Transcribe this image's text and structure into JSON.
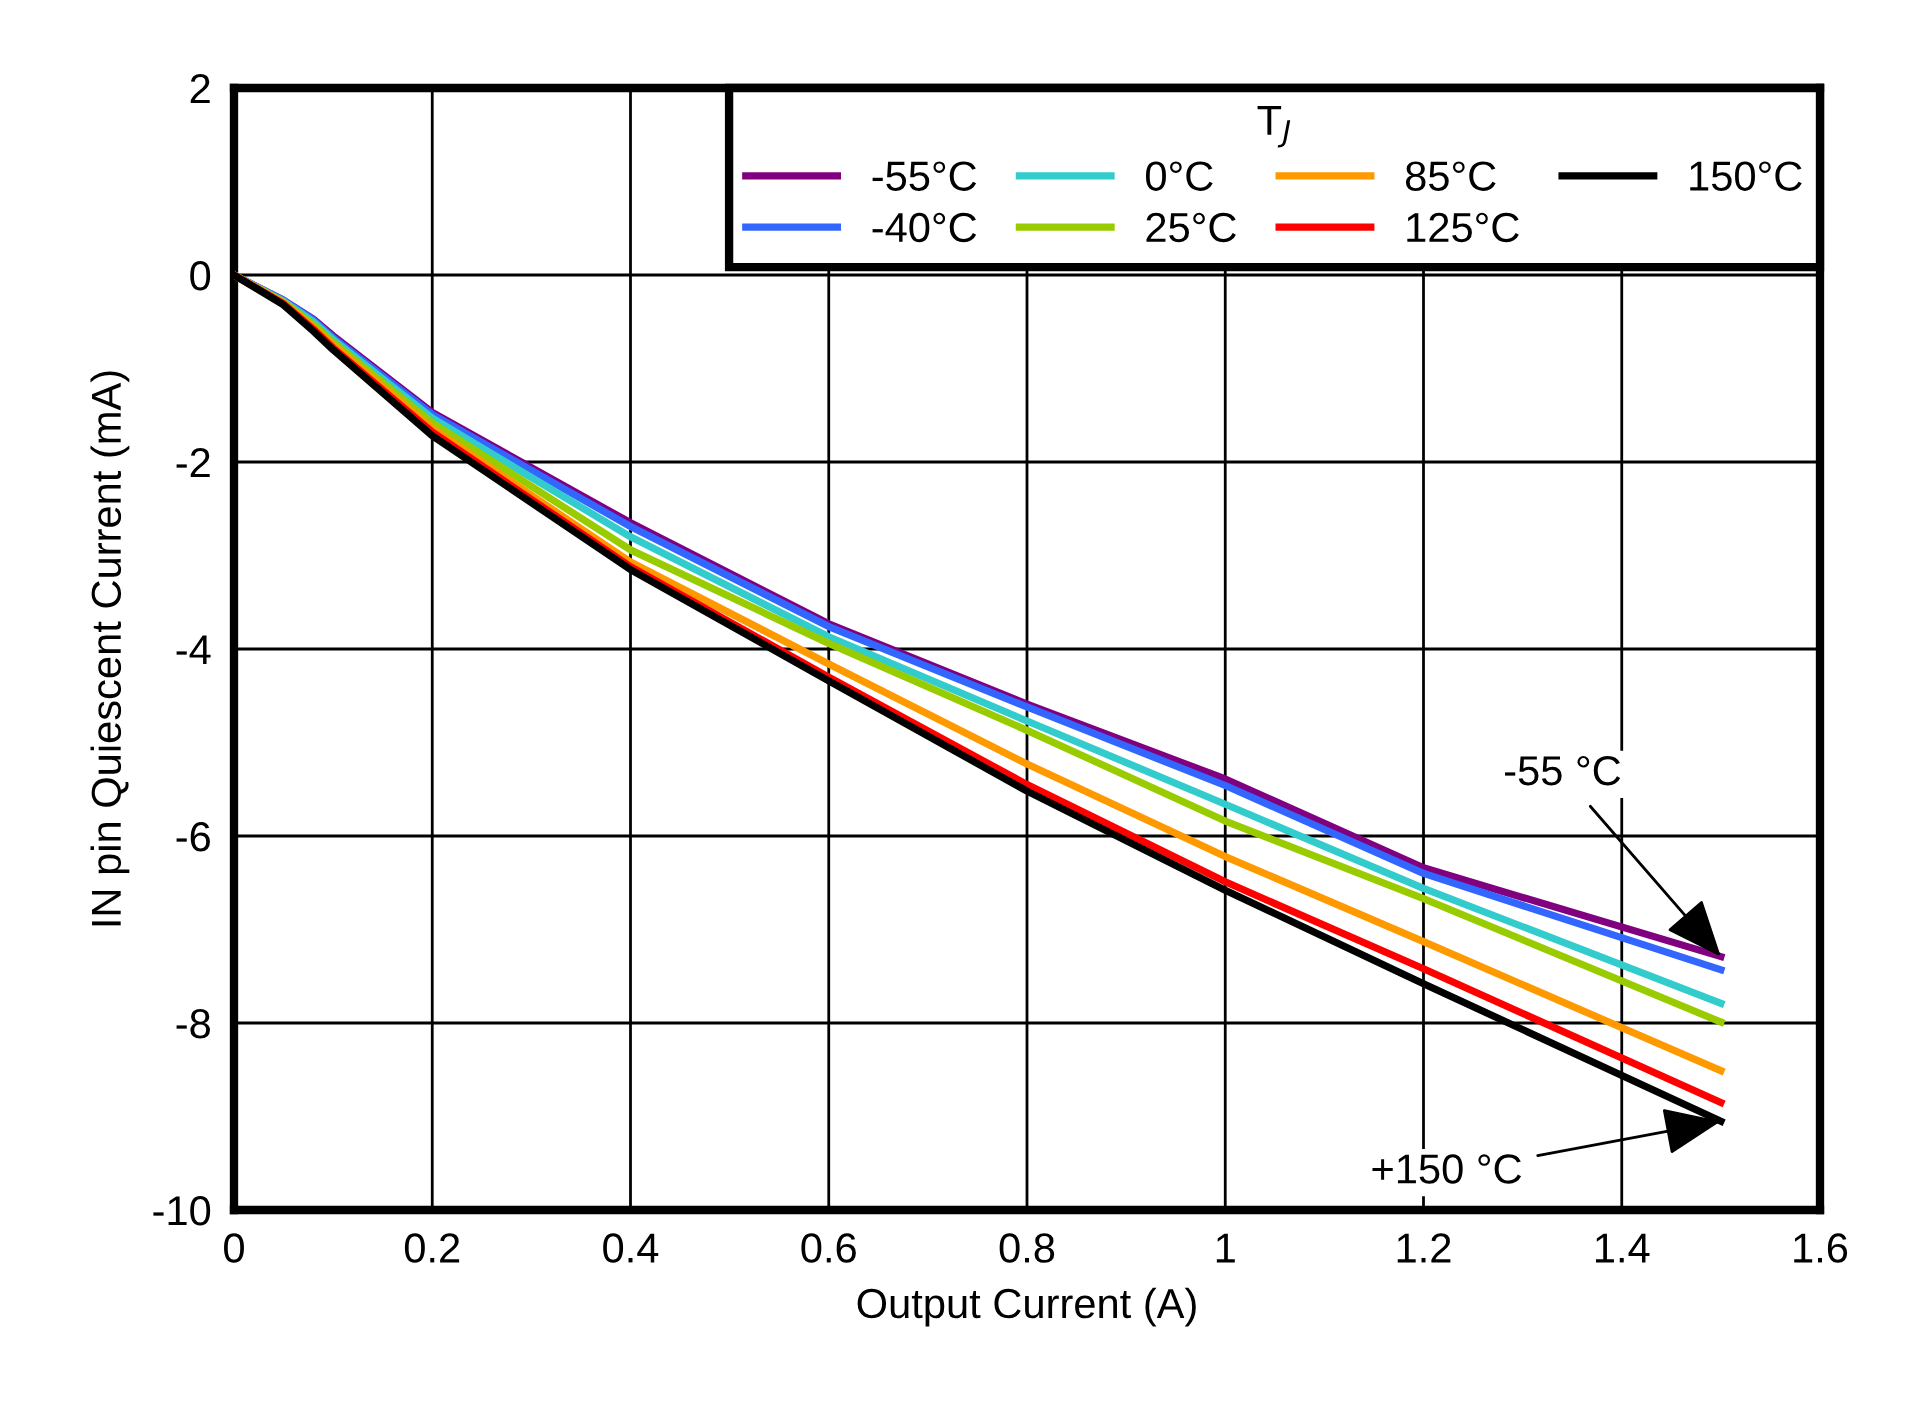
{
  "chart_data": {
    "type": "line",
    "xlabel": "Output Current (A)",
    "ylabel": "IN pin Quiescent Current (mA)",
    "legend_title": "T$_{J}$",
    "x": [
      0,
      0.05,
      0.08,
      0.1,
      0.2,
      0.4,
      0.6,
      0.8,
      1.0,
      1.2,
      1.5
    ],
    "series": [
      {
        "name": "-55°C",
        "color": "#800080",
        "values": [
          0,
          -0.27,
          -0.47,
          -0.65,
          -1.47,
          -2.65,
          -3.73,
          -4.59,
          -5.39,
          -6.34,
          -7.29
        ]
      },
      {
        "name": "-40°C",
        "color": "#3366ff",
        "values": [
          0,
          -0.27,
          -0.48,
          -0.67,
          -1.49,
          -2.69,
          -3.76,
          -4.62,
          -5.46,
          -6.4,
          -7.43
        ]
      },
      {
        "name": "0°C",
        "color": "#33cccc",
        "values": [
          0,
          -0.28,
          -0.5,
          -0.69,
          -1.53,
          -2.8,
          -3.87,
          -4.77,
          -5.66,
          -6.56,
          -7.79
        ]
      },
      {
        "name": "25°C",
        "color": "#99cc00",
        "values": [
          0,
          -0.29,
          -0.53,
          -0.72,
          -1.58,
          -2.94,
          -3.94,
          -4.87,
          -5.84,
          -6.67,
          -7.99
        ]
      },
      {
        "name": "85°C",
        "color": "#ff9900",
        "values": [
          0,
          -0.3,
          -0.56,
          -0.75,
          -1.64,
          -3.07,
          -4.16,
          -5.23,
          -6.22,
          -7.13,
          -8.51
        ]
      },
      {
        "name": "125°C",
        "color": "#ff0000",
        "values": [
          0,
          -0.31,
          -0.58,
          -0.78,
          -1.68,
          -3.12,
          -4.3,
          -5.45,
          -6.49,
          -7.42,
          -8.85
        ]
      },
      {
        "name": "150°C",
        "color": "#000000",
        "values": [
          0,
          -0.32,
          -0.6,
          -0.8,
          -1.72,
          -3.15,
          -4.34,
          -5.52,
          -6.58,
          -7.58,
          -9.05
        ]
      }
    ],
    "xlim": [
      0,
      1.6
    ],
    "xticks": [
      0,
      0.2,
      0.4,
      0.6,
      0.8,
      1,
      1.2,
      1.4,
      1.6
    ],
    "ylim": [
      -10,
      2
    ],
    "yticks": [
      -10,
      -8,
      -6,
      -4,
      -2,
      0,
      2
    ],
    "grid": true,
    "legend": "top right",
    "marker": "none",
    "line_style": "solid",
    "annotations": [
      {
        "text": "-55 °C",
        "x": 1.5,
        "y": -7.29
      },
      {
        "text": "+150 °C",
        "x": 1.5,
        "y": -9.05
      }
    ]
  }
}
